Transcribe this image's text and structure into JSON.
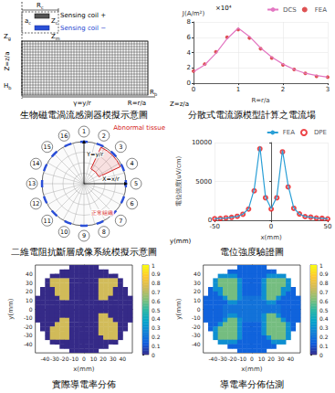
{
  "diagrams": {
    "sensor_model": {
      "title": "生物磁電渦流感測器模擬示意圖",
      "coil_radius": {
        "base": "R",
        "sub": "c"
      },
      "coil_plus": "Sensing coil +",
      "coil_minus": "Sensing coil −",
      "coil_height": {
        "base": "Z",
        "sub": "c"
      },
      "coil_gap": {
        "base": "Z",
        "sub": "m"
      },
      "coil_width": {
        "base": "a",
        "sub": "c"
      },
      "liftoff": {
        "base": "Z",
        "sub": "g"
      },
      "z_axis": "Z=z/a",
      "tissue_height": {
        "base": "H",
        "sub": "b"
      },
      "y_axis": "γ=y/r",
      "r_axis": "R=r/a",
      "tissue_radius": {
        "base": "R",
        "sub": "b"
      }
    },
    "eit_model": {
      "title": "二維電阻抗斷層成像系統模擬示意圖",
      "electrodes": [
        1,
        2,
        3,
        4,
        5,
        6,
        7,
        8,
        9,
        10,
        11,
        12,
        13,
        14,
        15,
        16
      ],
      "abnormal": "Abnormal tissue",
      "normal": "正常組織",
      "x_axis": "X=x/r",
      "y_axis": "Y=y/r"
    }
  },
  "chart_data": [
    {
      "type": "line",
      "title": "分散式電流源模型計算之電流場",
      "ylabel": "J(A/m²)",
      "xlabel": "R=r/a",
      "annotations": [
        "×10⁴",
        "Z=z/a"
      ],
      "x": [
        0,
        0.25,
        0.5,
        0.75,
        1,
        1.25,
        1.5,
        1.75,
        2,
        2.25,
        2.5,
        2.75,
        3
      ],
      "series": [
        {
          "name": "DCS",
          "type": "line",
          "color": "#e377c2",
          "line_style": "solid",
          "values": [
            1.5,
            2.4,
            3.9,
            5.8,
            7.2,
            6.1,
            4.6,
            3.4,
            2.5,
            1.8,
            1.3,
            1.0,
            0.8
          ]
        },
        {
          "name": "FEA",
          "type": "scatter",
          "color": "#d62728",
          "marker": "circle",
          "values": [
            1.6,
            2.5,
            4.1,
            6.0,
            7.0,
            5.9,
            4.5,
            3.3,
            2.4,
            1.8,
            1.3,
            0.9,
            0.8
          ]
        }
      ],
      "xlim": [
        0,
        3
      ],
      "xticks": [
        0,
        1,
        2,
        3
      ],
      "ylim": [
        0,
        8
      ],
      "yticks": [
        0,
        2,
        4,
        6,
        8
      ],
      "grid": true,
      "legend": "upper right"
    },
    {
      "type": "line",
      "title": "電位強度驗證圖",
      "ylabel": "電位強度(uV/cm)",
      "xlabel": "x(mm)",
      "annotations": [
        "y(mm)"
      ],
      "x": [
        -50,
        -45,
        -40,
        -35,
        -30,
        -25,
        -20,
        -15,
        -10,
        -5,
        0,
        5,
        10,
        15,
        20,
        25,
        30,
        35,
        40,
        45,
        50
      ],
      "series": [
        {
          "name": "FEA",
          "type": "line",
          "color": "#2a9fd6",
          "line_style": "solid",
          "values": [
            200,
            250,
            300,
            400,
            500,
            800,
            1500,
            4000,
            9500,
            3000,
            1500,
            3000,
            9000,
            4500,
            1600,
            800,
            500,
            400,
            300,
            250,
            200
          ]
        },
        {
          "name": "DPE",
          "type": "scatter",
          "color": "#e8161c",
          "marker": "open_circle",
          "values": [
            210,
            240,
            310,
            390,
            520,
            780,
            1450,
            3800,
            9200,
            2900,
            1450,
            2900,
            8800,
            4300,
            1550,
            820,
            480,
            410,
            290,
            260,
            190
          ]
        }
      ],
      "xlim": [
        -50,
        50
      ],
      "xticks": [
        -50,
        0,
        50
      ],
      "ylim": [
        0,
        10000
      ],
      "yticks": [
        0,
        5000,
        10000
      ],
      "grid": true,
      "legend": "upper right"
    },
    {
      "type": "heatmap",
      "title": "實際導電率分佈",
      "xlabel": "x(mm)",
      "ylabel": "y(mm)",
      "x": [
        -47.5,
        -42.5,
        -37.5,
        -32.5,
        -27.5,
        -22.5,
        -17.5,
        -12.5,
        -7.5,
        -2.5,
        2.5,
        7.5,
        12.5,
        17.5,
        22.5,
        27.5,
        32.5,
        37.5,
        42.5,
        47.5
      ],
      "y": [
        47.5,
        42.5,
        37.5,
        32.5,
        27.5,
        22.5,
        17.5,
        12.5,
        7.5,
        2.5,
        -2.5,
        -7.5,
        -12.5,
        -17.5,
        -22.5,
        -27.5,
        -32.5,
        -37.5,
        -42.5,
        -47.5
      ],
      "cells": [
        [
          null,
          null,
          null,
          null,
          null,
          null,
          null,
          0,
          0,
          0,
          0,
          0,
          0,
          null,
          null,
          null,
          null,
          null,
          null,
          null
        ],
        [
          null,
          null,
          null,
          null,
          null,
          0,
          0,
          0,
          0,
          0,
          0,
          0,
          0,
          0,
          0,
          null,
          null,
          null,
          null,
          null
        ],
        [
          null,
          null,
          null,
          0,
          0,
          0,
          0,
          0,
          0,
          0,
          0,
          0,
          0,
          0,
          0,
          0,
          0,
          null,
          null,
          null
        ],
        [
          null,
          null,
          0,
          0.75,
          0.75,
          0.75,
          0.75,
          0,
          0,
          0,
          0,
          0,
          0,
          0.75,
          0.75,
          0.75,
          0.75,
          0,
          null,
          null
        ],
        [
          null,
          null,
          0,
          0.75,
          0.75,
          0.75,
          0.75,
          0,
          0,
          0,
          0,
          0,
          0,
          0.75,
          0.75,
          0.75,
          0.75,
          0,
          null,
          null
        ],
        [
          null,
          0,
          0,
          0,
          0.75,
          0.75,
          0.75,
          0,
          0,
          0,
          0,
          0,
          0,
          0.75,
          0.75,
          0.75,
          0,
          0,
          0,
          null
        ],
        [
          null,
          0,
          0,
          0,
          0.75,
          0.75,
          0.75,
          0,
          0,
          0,
          0,
          0,
          0,
          0.75,
          0.75,
          0.75,
          0,
          0,
          0,
          null
        ],
        [
          0,
          0,
          0,
          0,
          0,
          0.75,
          0.75,
          0,
          0,
          0,
          0,
          0,
          0,
          0.75,
          0.75,
          0,
          0,
          0,
          0,
          0
        ],
        [
          0,
          0,
          0,
          0,
          0,
          0,
          0,
          0,
          0,
          0,
          0,
          0,
          0,
          0,
          0,
          0,
          0,
          0,
          0,
          0
        ],
        [
          0,
          0,
          0,
          0,
          0,
          0,
          0,
          0,
          0,
          0,
          0,
          0,
          0,
          0,
          0,
          0,
          0,
          0,
          0,
          0
        ],
        [
          0,
          0,
          0,
          0,
          0,
          0,
          0,
          0,
          0,
          0,
          0,
          0,
          0,
          0,
          0,
          0,
          0,
          0,
          0,
          0
        ],
        [
          0,
          0,
          0,
          0,
          0,
          0,
          0,
          0,
          0,
          0,
          0,
          0,
          0,
          0.75,
          0.75,
          0,
          0,
          0,
          0,
          0
        ],
        [
          0,
          0,
          0,
          0,
          0,
          0.75,
          0.75,
          0,
          0,
          0,
          0,
          0,
          0,
          0.75,
          0.75,
          0.75,
          0,
          0,
          0,
          0
        ],
        [
          null,
          0,
          0,
          0,
          0.75,
          0.75,
          0.75,
          0,
          0,
          0,
          0,
          0,
          0,
          0.75,
          0.75,
          0.75,
          0.75,
          0,
          0,
          null
        ],
        [
          null,
          0,
          0,
          0.75,
          0.75,
          0.75,
          0.75,
          0,
          0,
          0,
          0,
          0,
          0,
          0.75,
          0.75,
          0.75,
          0.75,
          0,
          0,
          null
        ],
        [
          null,
          null,
          0,
          0.75,
          0.75,
          0.75,
          0.75,
          0,
          0,
          0,
          0,
          0,
          0,
          0.75,
          0.75,
          0.75,
          0.75,
          0,
          null,
          null
        ],
        [
          null,
          null,
          0,
          0.75,
          0.75,
          0.75,
          0.75,
          0,
          0,
          0,
          0,
          0,
          0,
          0,
          0.75,
          0.75,
          0.75,
          0,
          null,
          null
        ],
        [
          null,
          null,
          null,
          0,
          0,
          0,
          0,
          0,
          0,
          0,
          0,
          0,
          0,
          0,
          0,
          0,
          0,
          null,
          null,
          null
        ],
        [
          null,
          null,
          null,
          null,
          null,
          0,
          0,
          0,
          0,
          0,
          0,
          0,
          0,
          0,
          0,
          null,
          null,
          null,
          null,
          null
        ],
        [
          null,
          null,
          null,
          null,
          null,
          null,
          null,
          0,
          0,
          0,
          0,
          0,
          0,
          null,
          null,
          null,
          null,
          null,
          null,
          null
        ]
      ],
      "xlim": [
        -50,
        50
      ],
      "xticks": [
        -40,
        -30,
        -20,
        -10,
        0,
        10,
        20,
        30,
        40
      ],
      "ylim": [
        -50,
        50
      ],
      "yticks": [
        -40,
        -30,
        -20,
        -10,
        0,
        10,
        20,
        30,
        40
      ],
      "colorbar_range": [
        0,
        1
      ],
      "colorbar_ticks": [
        0,
        0.1,
        0.2,
        0.3,
        0.4,
        0.5,
        0.6,
        0.7,
        0.8,
        0.9,
        1
      ],
      "grid": false
    },
    {
      "type": "heatmap",
      "title": "導電率分佈估測",
      "xlabel": "x(mm)",
      "ylabel": "y(mm)",
      "x": [
        -47.5,
        -42.5,
        -37.5,
        -32.5,
        -27.5,
        -22.5,
        -17.5,
        -12.5,
        -7.5,
        -2.5,
        2.5,
        7.5,
        12.5,
        17.5,
        22.5,
        27.5,
        32.5,
        37.5,
        42.5,
        47.5
      ],
      "y": [
        47.5,
        42.5,
        37.5,
        32.5,
        27.5,
        22.5,
        17.5,
        12.5,
        7.5,
        2.5,
        -2.5,
        -7.5,
        -12.5,
        -17.5,
        -22.5,
        -27.5,
        -32.5,
        -37.5,
        -42.5,
        -47.5
      ],
      "cells": [
        [
          null,
          null,
          null,
          null,
          null,
          null,
          null,
          0.15,
          0.15,
          0.15,
          0.15,
          0.15,
          0.15,
          null,
          null,
          null,
          null,
          null,
          null,
          null
        ],
        [
          null,
          null,
          null,
          null,
          null,
          0.15,
          0.15,
          0.15,
          0.15,
          0.15,
          0.15,
          0.15,
          0.15,
          0.15,
          0.15,
          null,
          null,
          null,
          null,
          null
        ],
        [
          null,
          null,
          null,
          0.3,
          0.3,
          0.3,
          0.3,
          0.15,
          0.15,
          0.15,
          0.15,
          0.15,
          0.15,
          0.3,
          0.3,
          0.3,
          0.3,
          null,
          null,
          null
        ],
        [
          null,
          null,
          0.3,
          0.6,
          0.6,
          0.6,
          0.6,
          0.3,
          0.15,
          0.15,
          0.15,
          0.15,
          0.3,
          0.6,
          0.6,
          0.6,
          0.6,
          0.3,
          null,
          null
        ],
        [
          null,
          null,
          0.3,
          0.6,
          0.6,
          0.6,
          0.6,
          0.3,
          0.15,
          0.15,
          0.15,
          0.15,
          0.3,
          0.6,
          0.6,
          0.6,
          0.6,
          0.3,
          null,
          null
        ],
        [
          null,
          0.15,
          0.3,
          0.3,
          0.6,
          0.6,
          0.6,
          0.3,
          0.15,
          0.15,
          0.15,
          0.15,
          0.3,
          0.6,
          0.6,
          0.6,
          0.3,
          0.3,
          0.15,
          null
        ],
        [
          null,
          0.15,
          0.15,
          0.3,
          0.6,
          0.6,
          0.6,
          0.3,
          0.15,
          0.15,
          0.15,
          0.15,
          0.3,
          0.6,
          0.6,
          0.6,
          0.3,
          0.15,
          0.15,
          null
        ],
        [
          0.15,
          0.15,
          0.15,
          0.15,
          0.3,
          0.6,
          0.6,
          0.3,
          0.2,
          0.2,
          0.2,
          0.2,
          0.3,
          0.6,
          0.6,
          0.3,
          0.15,
          0.15,
          0.15,
          0.15
        ],
        [
          0.15,
          0.15,
          0.15,
          0.15,
          0.15,
          0.3,
          0.3,
          0.2,
          0.2,
          0.2,
          0.2,
          0.2,
          0.2,
          0.3,
          0.3,
          0.15,
          0.15,
          0.15,
          0.15,
          0.15
        ],
        [
          0.15,
          0.15,
          0.15,
          0.15,
          0.2,
          0.2,
          0.2,
          0.2,
          0.2,
          0.2,
          0.2,
          0.2,
          0.2,
          0.2,
          0.2,
          0.2,
          0.15,
          0.15,
          0.15,
          0.15
        ],
        [
          0.15,
          0.15,
          0.15,
          0.15,
          0.2,
          0.2,
          0.2,
          0.2,
          0.2,
          0.2,
          0.2,
          0.2,
          0.2,
          0.2,
          0.2,
          0.2,
          0.15,
          0.15,
          0.15,
          0.15
        ],
        [
          0.15,
          0.15,
          0.15,
          0.15,
          0.2,
          0.3,
          0.3,
          0.2,
          0.2,
          0.2,
          0.2,
          0.2,
          0.3,
          0.6,
          0.6,
          0.3,
          0.15,
          0.15,
          0.15,
          0.15
        ],
        [
          0.15,
          0.15,
          0.15,
          0.15,
          0.3,
          0.6,
          0.6,
          0.3,
          0.2,
          0.2,
          0.2,
          0.2,
          0.3,
          0.6,
          0.6,
          0.6,
          0.3,
          0.15,
          0.15,
          0.15
        ],
        [
          null,
          0.15,
          0.15,
          0.3,
          0.6,
          0.6,
          0.6,
          0.3,
          0.15,
          0.15,
          0.15,
          0.15,
          0.3,
          0.6,
          0.6,
          0.6,
          0.6,
          0.3,
          0.15,
          null
        ],
        [
          null,
          0.15,
          0.3,
          0.6,
          0.6,
          0.6,
          0.6,
          0.3,
          0.15,
          0.15,
          0.15,
          0.15,
          0.3,
          0.6,
          0.6,
          0.6,
          0.6,
          0.3,
          0.15,
          null
        ],
        [
          null,
          null,
          0.3,
          0.6,
          0.6,
          0.6,
          0.6,
          0.3,
          0.15,
          0.15,
          0.15,
          0.15,
          0.3,
          0.6,
          0.6,
          0.6,
          0.6,
          0.3,
          null,
          null
        ],
        [
          null,
          null,
          0.3,
          0.6,
          0.6,
          0.6,
          0.6,
          0.3,
          0.15,
          0.15,
          0.15,
          0.15,
          0.15,
          0.3,
          0.6,
          0.6,
          0.6,
          0.3,
          null,
          null
        ],
        [
          null,
          null,
          null,
          0.3,
          0.3,
          0.3,
          0.3,
          0.15,
          0.15,
          0.15,
          0.15,
          0.15,
          0.15,
          0.15,
          0.3,
          0.3,
          0.3,
          null,
          null,
          null
        ],
        [
          null,
          null,
          null,
          null,
          null,
          0.15,
          0.15,
          0.15,
          0.15,
          0.15,
          0.15,
          0.15,
          0.15,
          0.15,
          0.15,
          null,
          null,
          null,
          null,
          null
        ],
        [
          null,
          null,
          null,
          null,
          null,
          null,
          null,
          0.15,
          0.15,
          0.15,
          0.15,
          0.15,
          0.15,
          null,
          null,
          null,
          null,
          null,
          null,
          null
        ]
      ],
      "xlim": [
        -50,
        50
      ],
      "xticks": [
        -40,
        -30,
        -20,
        -10,
        0,
        10,
        20,
        30,
        40
      ],
      "ylim": [
        -50,
        50
      ],
      "yticks": [
        -40,
        -30,
        -20,
        -10,
        0,
        10,
        20,
        30,
        40
      ],
      "colorbar_range": [
        0,
        1
      ],
      "colorbar_ticks": [
        0,
        0.1,
        0.2,
        0.3,
        0.4,
        0.5,
        0.6,
        0.7,
        0.8,
        0.9,
        1
      ],
      "grid": false
    }
  ]
}
